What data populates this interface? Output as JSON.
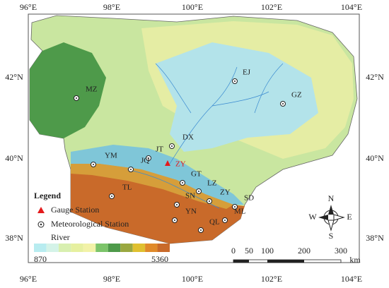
{
  "map": {
    "lon_labels": [
      "96°E",
      "98°E",
      "100°E",
      "102°E",
      "104°E"
    ],
    "lat_labels": [
      "42°N",
      "40°N",
      "38°N"
    ],
    "gauge_stations": [
      "ZY"
    ],
    "meteorological_stations": [
      "EJ",
      "GZ",
      "MZ",
      "DX",
      "JT",
      "YM",
      "JQ",
      "GT",
      "LZ",
      "ZY",
      "SN",
      "SD",
      "TL",
      "ML",
      "YN",
      "QL"
    ],
    "legend": {
      "title": "Legend",
      "items": [
        "Gauge Station",
        "Meteorological Station",
        "River"
      ],
      "elevation_min": 870,
      "elevation_max": 5360
    },
    "compass": {
      "north": "N",
      "south": "S",
      "east": "E",
      "west": "W"
    },
    "scale": {
      "ticks": [
        "0",
        "50",
        "100",
        "200",
        "300"
      ],
      "unit": "km"
    }
  }
}
